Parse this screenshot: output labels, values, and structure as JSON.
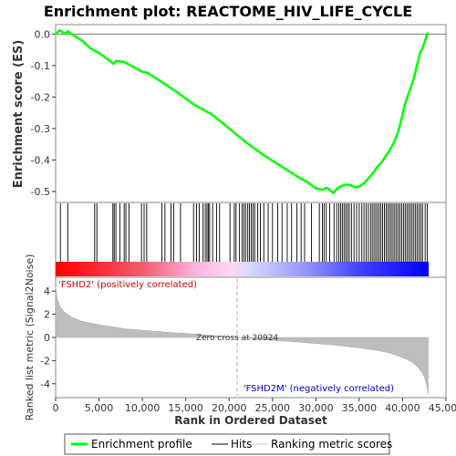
{
  "chart_data": {
    "type": "line",
    "title": "Enrichment plot: REACTOME_HIV_LIFE_CYCLE",
    "xlabel": "Rank in Ordered Dataset",
    "xlim": [
      0,
      45000
    ],
    "x_ticks": [
      0,
      5000,
      10000,
      15000,
      20000,
      25000,
      30000,
      35000,
      40000,
      45000
    ],
    "x_tick_labels": [
      "0",
      "5,000",
      "10,000",
      "15,000",
      "20,000",
      "25,000",
      "30,000",
      "35,000",
      "40,000",
      "45,000"
    ],
    "es_panel": {
      "ylabel": "Enrichment score (ES)",
      "ylim": [
        -0.535,
        0.03
      ],
      "y_ticks": [
        0.0,
        -0.1,
        -0.2,
        -0.3,
        -0.4,
        -0.5
      ],
      "y_tick_labels": [
        "0.0",
        "-0.1",
        "-0.2",
        "-0.3",
        "-0.4",
        "-0.5"
      ],
      "series": [
        {
          "name": "Enrichment profile",
          "color": "#00ff00",
          "x": [
            0,
            300,
            500,
            800,
            1100,
            1400,
            2000,
            3000,
            4000,
            4600,
            5000,
            6000,
            6700,
            7000,
            8000,
            9000,
            10000,
            10500,
            12000,
            14000,
            16000,
            18000,
            20000,
            22000,
            24000,
            26000,
            28000,
            29000,
            30000,
            30800,
            31200,
            31500,
            32000,
            32500,
            33000,
            33500,
            34000,
            34500,
            35000,
            35500,
            36000,
            36500,
            37000,
            37500,
            38000,
            38500,
            39000,
            39500,
            40000,
            40300,
            40800,
            41300,
            41600,
            42000,
            42300,
            42600,
            42900
          ],
          "y": [
            -0.002,
            0.008,
            0.012,
            0.005,
            0.001,
            0.009,
            -0.003,
            -0.02,
            -0.045,
            -0.055,
            -0.06,
            -0.08,
            -0.095,
            -0.085,
            -0.09,
            -0.105,
            -0.12,
            -0.122,
            -0.148,
            -0.185,
            -0.225,
            -0.255,
            -0.3,
            -0.345,
            -0.385,
            -0.42,
            -0.455,
            -0.47,
            -0.49,
            -0.495,
            -0.488,
            -0.493,
            -0.505,
            -0.49,
            -0.482,
            -0.478,
            -0.48,
            -0.487,
            -0.485,
            -0.475,
            -0.46,
            -0.445,
            -0.425,
            -0.41,
            -0.39,
            -0.37,
            -0.345,
            -0.31,
            -0.255,
            -0.22,
            -0.18,
            -0.14,
            -0.105,
            -0.06,
            -0.045,
            -0.02,
            0.005
          ]
        }
      ]
    },
    "hits_panel": {
      "legend_label": "Hits",
      "hit_positions": [
        550,
        1400,
        4500,
        4750,
        6600,
        6750,
        6950,
        7400,
        7900,
        8100,
        8450,
        9900,
        10200,
        10500,
        12250,
        12600,
        13300,
        13600,
        14400,
        15900,
        16250,
        16550,
        17000,
        17250,
        17450,
        17600,
        17750,
        18100,
        18550,
        18900,
        20100,
        20600,
        20800,
        21200,
        21500,
        21700,
        21900,
        22150,
        22350,
        22550,
        22750,
        22950,
        23300,
        23600,
        24000,
        24500,
        25000,
        25600,
        26100,
        26700,
        27200,
        27800,
        28300,
        28700,
        29500,
        30400,
        30750,
        30950,
        31200,
        31600,
        32100,
        32400,
        32650,
        32850,
        33050,
        33250,
        33450,
        33650,
        33850,
        34100,
        34400,
        34700,
        35000,
        35300,
        35550,
        35800,
        36050,
        36300,
        36500,
        36700,
        36900,
        37100,
        37300,
        37500,
        37700,
        37900,
        38100,
        38300,
        38500,
        38700,
        38900,
        39100,
        39300,
        39500,
        39700,
        39900,
        40100,
        40300,
        40500,
        40700,
        40900,
        41100,
        41300,
        41500,
        41700,
        41900,
        42100,
        42300,
        42600,
        42850
      ]
    },
    "metric_panel": {
      "ylabel": "Ranked list metric (Signal2Noise)",
      "legend_label": "Ranking metric scores",
      "ylim": [
        -5.2,
        5.2
      ],
      "y_ticks": [
        4,
        2,
        0,
        -2,
        -4
      ],
      "y_tick_labels": [
        "4",
        "2",
        "0",
        "-2",
        "-4"
      ],
      "x": [
        0,
        200,
        500,
        1000,
        2000,
        3000,
        5000,
        8000,
        12000,
        16000,
        20924,
        24000,
        28000,
        32000,
        35000,
        37000,
        38500,
        39500,
        40500,
        41200,
        41800,
        42200,
        42500,
        42700,
        42850,
        42950
      ],
      "y": [
        4.5,
        3.3,
        2.7,
        2.2,
        1.7,
        1.4,
        1.1,
        0.75,
        0.5,
        0.3,
        0.0,
        -0.2,
        -0.4,
        -0.65,
        -0.9,
        -1.1,
        -1.35,
        -1.6,
        -1.9,
        -2.2,
        -2.6,
        -3.0,
        -3.4,
        -3.9,
        -4.5,
        -4.95
      ],
      "positive_label": "'FSHD2' (positively correlated)",
      "negative_label": "'FSHD2M' (negatively correlated)",
      "zero_cross_label": "Zero cross at 20924",
      "zero_cross": 20924,
      "max_rank": 43000
    },
    "legend": {
      "placement": "bottom",
      "profile_label": "Enrichment profile",
      "hits_label": "Hits",
      "scores_label": "Ranking metric scores"
    }
  }
}
